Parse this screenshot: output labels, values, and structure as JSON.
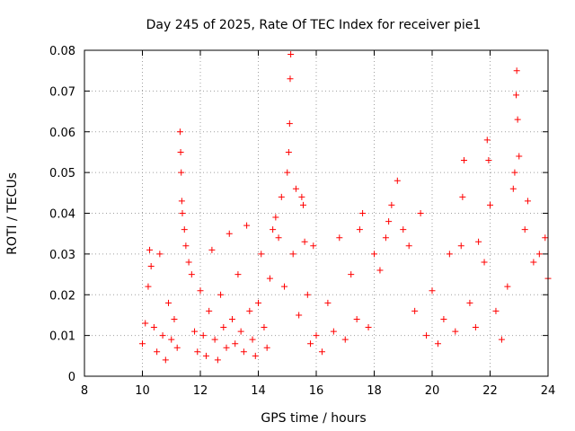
{
  "chart_data": {
    "type": "scatter",
    "title": "Day 245 of 2025, Rate Of TEC Index for receiver pie1",
    "xlabel": "GPS time / hours",
    "ylabel": "ROTI / TECUs",
    "xlim": [
      8,
      24
    ],
    "ylim": [
      0,
      0.08
    ],
    "x_ticks": [
      8,
      10,
      12,
      14,
      16,
      18,
      20,
      22,
      24
    ],
    "x_tick_labels": [
      "8",
      "10",
      "12",
      "14",
      "16",
      "18",
      "20",
      "22",
      "24"
    ],
    "y_ticks": [
      0,
      0.01,
      0.02,
      0.03,
      0.04,
      0.05,
      0.06,
      0.07,
      0.08
    ],
    "y_tick_labels": [
      "0",
      "0.01",
      "0.02",
      "0.03",
      "0.04",
      "0.05",
      "0.06",
      "0.07",
      "0.08"
    ],
    "grid": true,
    "marker": "+",
    "color": "#ff0000",
    "series": [
      {
        "name": "ROTI",
        "points": [
          [
            10.0,
            0.008
          ],
          [
            10.1,
            0.013
          ],
          [
            10.2,
            0.022
          ],
          [
            10.25,
            0.031
          ],
          [
            10.3,
            0.027
          ],
          [
            10.4,
            0.012
          ],
          [
            10.5,
            0.006
          ],
          [
            10.6,
            0.03
          ],
          [
            10.7,
            0.01
          ],
          [
            10.8,
            0.004
          ],
          [
            10.9,
            0.018
          ],
          [
            11.0,
            0.009
          ],
          [
            11.1,
            0.014
          ],
          [
            11.2,
            0.007
          ],
          [
            11.3,
            0.06
          ],
          [
            11.32,
            0.055
          ],
          [
            11.34,
            0.05
          ],
          [
            11.36,
            0.043
          ],
          [
            11.38,
            0.04
          ],
          [
            11.45,
            0.036
          ],
          [
            11.5,
            0.032
          ],
          [
            11.6,
            0.028
          ],
          [
            11.7,
            0.025
          ],
          [
            11.8,
            0.011
          ],
          [
            11.9,
            0.006
          ],
          [
            12.0,
            0.021
          ],
          [
            12.1,
            0.01
          ],
          [
            12.2,
            0.005
          ],
          [
            12.3,
            0.016
          ],
          [
            12.4,
            0.031
          ],
          [
            12.5,
            0.009
          ],
          [
            12.6,
            0.004
          ],
          [
            12.7,
            0.02
          ],
          [
            12.8,
            0.012
          ],
          [
            12.9,
            0.007
          ],
          [
            13.0,
            0.035
          ],
          [
            13.1,
            0.014
          ],
          [
            13.2,
            0.008
          ],
          [
            13.3,
            0.025
          ],
          [
            13.4,
            0.011
          ],
          [
            13.5,
            0.006
          ],
          [
            13.6,
            0.037
          ],
          [
            13.7,
            0.016
          ],
          [
            13.8,
            0.009
          ],
          [
            13.9,
            0.005
          ],
          [
            14.0,
            0.018
          ],
          [
            14.1,
            0.03
          ],
          [
            14.2,
            0.012
          ],
          [
            14.3,
            0.007
          ],
          [
            14.4,
            0.024
          ],
          [
            14.5,
            0.036
          ],
          [
            14.6,
            0.039
          ],
          [
            14.7,
            0.034
          ],
          [
            14.8,
            0.044
          ],
          [
            14.9,
            0.022
          ],
          [
            15.0,
            0.05
          ],
          [
            15.05,
            0.055
          ],
          [
            15.08,
            0.062
          ],
          [
            15.1,
            0.073
          ],
          [
            15.12,
            0.079
          ],
          [
            15.2,
            0.03
          ],
          [
            15.3,
            0.046
          ],
          [
            15.4,
            0.015
          ],
          [
            15.5,
            0.044
          ],
          [
            15.55,
            0.042
          ],
          [
            15.6,
            0.033
          ],
          [
            15.7,
            0.02
          ],
          [
            15.8,
            0.008
          ],
          [
            15.9,
            0.032
          ],
          [
            16.0,
            0.01
          ],
          [
            16.2,
            0.006
          ],
          [
            16.4,
            0.018
          ],
          [
            16.6,
            0.011
          ],
          [
            16.8,
            0.034
          ],
          [
            17.0,
            0.009
          ],
          [
            17.2,
            0.025
          ],
          [
            17.4,
            0.014
          ],
          [
            17.5,
            0.036
          ],
          [
            17.6,
            0.04
          ],
          [
            17.8,
            0.012
          ],
          [
            18.0,
            0.03
          ],
          [
            18.2,
            0.026
          ],
          [
            18.4,
            0.034
          ],
          [
            18.5,
            0.038
          ],
          [
            18.6,
            0.042
          ],
          [
            18.8,
            0.048
          ],
          [
            19.0,
            0.036
          ],
          [
            19.2,
            0.032
          ],
          [
            19.4,
            0.016
          ],
          [
            19.6,
            0.04
          ],
          [
            19.8,
            0.01
          ],
          [
            20.0,
            0.021
          ],
          [
            20.2,
            0.008
          ],
          [
            20.4,
            0.014
          ],
          [
            20.6,
            0.03
          ],
          [
            20.8,
            0.011
          ],
          [
            21.0,
            0.032
          ],
          [
            21.05,
            0.044
          ],
          [
            21.1,
            0.053
          ],
          [
            21.3,
            0.018
          ],
          [
            21.5,
            0.012
          ],
          [
            21.6,
            0.033
          ],
          [
            21.8,
            0.028
          ],
          [
            21.9,
            0.058
          ],
          [
            21.95,
            0.053
          ],
          [
            22.0,
            0.042
          ],
          [
            22.2,
            0.016
          ],
          [
            22.4,
            0.009
          ],
          [
            22.6,
            0.022
          ],
          [
            22.8,
            0.046
          ],
          [
            22.85,
            0.05
          ],
          [
            22.9,
            0.069
          ],
          [
            22.92,
            0.075
          ],
          [
            22.95,
            0.063
          ],
          [
            23.0,
            0.054
          ],
          [
            23.2,
            0.036
          ],
          [
            23.3,
            0.043
          ],
          [
            23.5,
            0.028
          ],
          [
            23.7,
            0.03
          ],
          [
            23.9,
            0.034
          ],
          [
            24.0,
            0.024
          ]
        ]
      }
    ]
  }
}
